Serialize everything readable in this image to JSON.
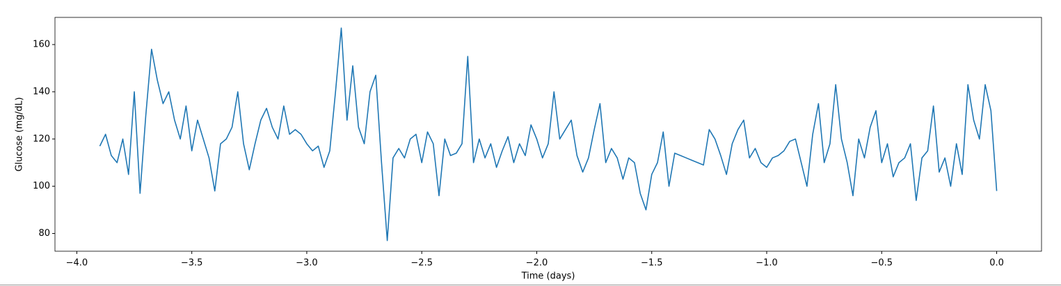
{
  "chart_data": {
    "type": "line",
    "xlabel": "Time (days)",
    "ylabel": "Glucose (mg/dL)",
    "color": "#1f77b4",
    "xlim": [
      -4.095,
      0.195
    ],
    "ylim": [
      72.5,
      171.5
    ],
    "xticks": [
      {
        "value": -4,
        "label": "−4.0"
      },
      {
        "value": -3.5,
        "label": "−3.5"
      },
      {
        "value": -3,
        "label": "−3.0"
      },
      {
        "value": -2.5,
        "label": "−2.5"
      },
      {
        "value": -2,
        "label": "−2.0"
      },
      {
        "value": -1.5,
        "label": "−1.5"
      },
      {
        "value": -1,
        "label": "−1.0"
      },
      {
        "value": -0.5,
        "label": "−0.5"
      },
      {
        "value": 0,
        "label": "0.0"
      }
    ],
    "yticks": [
      80,
      100,
      120,
      140,
      160
    ],
    "x": [
      -3.9,
      -3.875,
      -3.85,
      -3.825,
      -3.8,
      -3.775,
      -3.75,
      -3.725,
      -3.7,
      -3.675,
      -3.65,
      -3.625,
      -3.6,
      -3.575,
      -3.55,
      -3.525,
      -3.5,
      -3.475,
      -3.45,
      -3.425,
      -3.4,
      -3.375,
      -3.35,
      -3.325,
      -3.3,
      -3.275,
      -3.25,
      -3.225,
      -3.2,
      -3.175,
      -3.15,
      -3.125,
      -3.1,
      -3.075,
      -3.05,
      -3.025,
      -3.0,
      -2.975,
      -2.95,
      -2.925,
      -2.9,
      -2.875,
      -2.85,
      -2.825,
      -2.8,
      -2.775,
      -2.75,
      -2.725,
      -2.7,
      -2.675,
      -2.65,
      -2.625,
      -2.6,
      -2.575,
      -2.55,
      -2.525,
      -2.5,
      -2.475,
      -2.45,
      -2.425,
      -2.4,
      -2.375,
      -2.35,
      -2.325,
      -2.3,
      -2.275,
      -2.25,
      -2.225,
      -2.2,
      -2.175,
      -2.15,
      -2.125,
      -2.1,
      -2.075,
      -2.05,
      -2.025,
      -2.0,
      -1.975,
      -1.95,
      -1.925,
      -1.9,
      -1.875,
      -1.85,
      -1.825,
      -1.8,
      -1.775,
      -1.75,
      -1.725,
      -1.7,
      -1.675,
      -1.65,
      -1.625,
      -1.6,
      -1.575,
      -1.55,
      -1.525,
      -1.5,
      -1.475,
      -1.45,
      -1.425,
      -1.4,
      -1.375,
      -1.35,
      -1.325,
      -1.3,
      -1.275,
      -1.25,
      -1.225,
      -1.2,
      -1.175,
      -1.15,
      -1.125,
      -1.1,
      -1.075,
      -1.05,
      -1.025,
      -1.0,
      -0.975,
      -0.95,
      -0.925,
      -0.9,
      -0.875,
      -0.85,
      -0.825,
      -0.8,
      -0.775,
      -0.75,
      -0.725,
      -0.7,
      -0.675,
      -0.65,
      -0.625,
      -0.6,
      -0.575,
      -0.55,
      -0.525,
      -0.5,
      -0.475,
      -0.45,
      -0.425,
      -0.4,
      -0.375,
      -0.35,
      -0.325,
      -0.3,
      -0.275,
      -0.25,
      -0.225,
      -0.2,
      -0.175,
      -0.15,
      -0.125,
      -0.1,
      -0.075,
      -0.05,
      -0.025,
      0.0
    ],
    "values": [
      117,
      122,
      113,
      110,
      120,
      105,
      140,
      97,
      130,
      158,
      145,
      135,
      140,
      128,
      120,
      134,
      115,
      128,
      120,
      112,
      98,
      118,
      120,
      125,
      140,
      118,
      107,
      118,
      128,
      133,
      125,
      120,
      134,
      122,
      124,
      122,
      118,
      115,
      117,
      108,
      115,
      140,
      167,
      128,
      151,
      125,
      118,
      140,
      147,
      110,
      77,
      112,
      116,
      112,
      120,
      122,
      110,
      123,
      118,
      96,
      120,
      113,
      114,
      118,
      155,
      110,
      120,
      112,
      118,
      108,
      115,
      121,
      110,
      118,
      113,
      126,
      120,
      112,
      118,
      140,
      120,
      124,
      128,
      113,
      106,
      112,
      124,
      135,
      110,
      116,
      112,
      103,
      112,
      110,
      97,
      90,
      105,
      110,
      123,
      100,
      114,
      113,
      112,
      111,
      110,
      109,
      124,
      120,
      113,
      105,
      118,
      124,
      128,
      112,
      116,
      110,
      108,
      112,
      113,
      115,
      119,
      120,
      110,
      100,
      122,
      135,
      110,
      118,
      143,
      120,
      110,
      96,
      120,
      112,
      125,
      132,
      110,
      118,
      104,
      110,
      112,
      118,
      94,
      112,
      115,
      134,
      106,
      112,
      100,
      118,
      105,
      143,
      128,
      120,
      143,
      132,
      98
    ]
  }
}
